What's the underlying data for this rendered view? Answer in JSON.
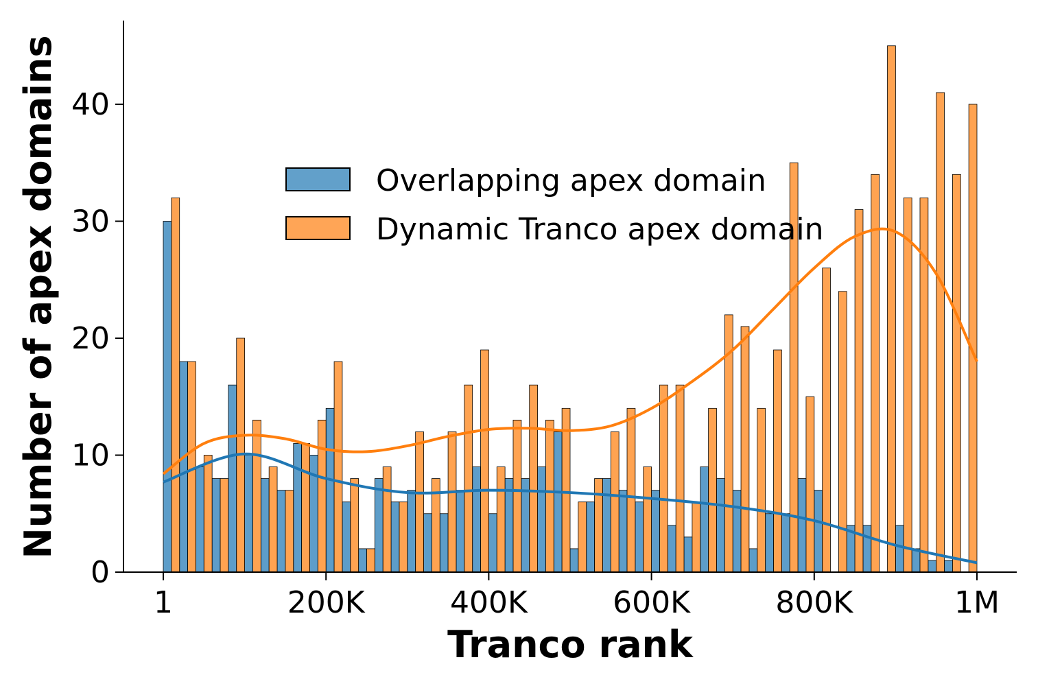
{
  "chart_data": {
    "type": "bar",
    "xlabel": "Tranco rank",
    "ylabel": "Number of apex domains",
    "x_ticks": [
      "1",
      "200K",
      "400K",
      "600K",
      "800K",
      "1M"
    ],
    "y_ticks": [
      "0",
      "10",
      "20",
      "30",
      "40"
    ],
    "xlim": [
      0,
      1000000
    ],
    "ylim": [
      0,
      47
    ],
    "bins": 50,
    "bin_width": 20000,
    "grid": false,
    "legend_position": "upper-center",
    "series": [
      {
        "name": "Overlapping apex domain",
        "color": "#1f77b4",
        "values": [
          30,
          18,
          9,
          8,
          16,
          10,
          8,
          7,
          11,
          10,
          14,
          6,
          2,
          8,
          6,
          7,
          5,
          5,
          7,
          9,
          5,
          8,
          8,
          9,
          12,
          2,
          6,
          8,
          7,
          6,
          7,
          4,
          3,
          9,
          8,
          7,
          2,
          5,
          5,
          8,
          7,
          0,
          4,
          4,
          0,
          4,
          2,
          1,
          1,
          0
        ]
      },
      {
        "name": "Dynamic Tranco apex domain",
        "color": "#ff7f0e",
        "values": [
          32,
          18,
          10,
          8,
          20,
          13,
          9,
          7,
          11,
          13,
          18,
          8,
          2,
          9,
          6,
          12,
          8,
          12,
          16,
          19,
          9,
          13,
          16,
          13,
          14,
          6,
          8,
          12,
          14,
          9,
          16,
          16,
          6,
          14,
          22,
          21,
          14,
          19,
          35,
          15,
          26,
          24,
          31,
          34,
          45,
          32,
          32,
          41,
          34,
          40
        ]
      }
    ],
    "kde": [
      {
        "name": "Overlapping apex domain",
        "x": [
          0,
          100000,
          200000,
          300000,
          400000,
          500000,
          600000,
          700000,
          800000,
          900000,
          1000000
        ],
        "y": [
          7.7,
          10.1,
          8.0,
          6.8,
          7.0,
          6.8,
          6.3,
          5.6,
          4.4,
          2.3,
          0.8
        ]
      },
      {
        "name": "Dynamic Tranco apex domain",
        "x": [
          0,
          50000,
          100000,
          150000,
          200000,
          250000,
          300000,
          350000,
          400000,
          450000,
          500000,
          550000,
          600000,
          650000,
          700000,
          750000,
          800000,
          850000,
          900000,
          950000,
          1000000
        ],
        "y": [
          8.4,
          11.0,
          11.7,
          11.4,
          10.5,
          10.3,
          10.8,
          11.6,
          12.2,
          12.3,
          12.1,
          12.5,
          14.0,
          16.3,
          19.0,
          22.5,
          26.0,
          28.7,
          29.1,
          25.5,
          18.0
        ]
      }
    ]
  }
}
